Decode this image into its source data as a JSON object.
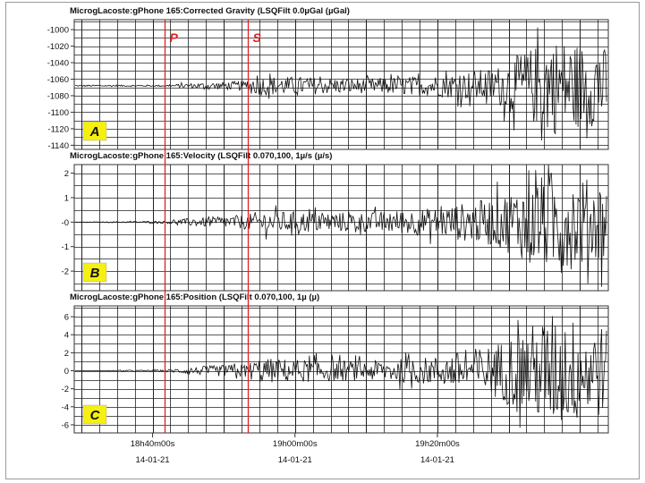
{
  "chart_data": {
    "type": "line",
    "grid": true,
    "time_axis": {
      "range": [
        "18h29m00s",
        "19h44m00s"
      ],
      "tick_labels": [
        {
          "time": "18h40m00s",
          "date": "14-01-21"
        },
        {
          "time": "19h00m00s",
          "date": "14-01-21"
        },
        {
          "time": "19h20m00s",
          "date": "14-01-21"
        }
      ]
    },
    "markers": [
      {
        "label": "P",
        "time": "18h41m45s",
        "color": "#e02020"
      },
      {
        "label": "S",
        "time": "18h53m20s",
        "color": "#e02020"
      }
    ],
    "panels": [
      {
        "letter": "A",
        "title": "MicrogLacoste:gPhone 165:Corrected Gravity (LSQFilt 0.0µGal (µGal)",
        "ylim": [
          -1145,
          -988
        ],
        "ytick_values": [
          -1000,
          -1020,
          -1040,
          -1060,
          -1080,
          -1100,
          -1120,
          -1140
        ],
        "ytick_labels": [
          "-1000",
          "-1020",
          "-1040",
          "-1060",
          "-1080",
          "-1100",
          "-1120",
          "-1140"
        ],
        "baseline": -1068,
        "envelope": [
          {
            "t": "18h29m00s",
            "amp": 1
          },
          {
            "t": "18h41m45s",
            "amp": 1
          },
          {
            "t": "18h45m00s",
            "amp": 3
          },
          {
            "t": "18h53m00s",
            "amp": 6
          },
          {
            "t": "18h55m00s",
            "amp": 12
          },
          {
            "t": "19h10m00s",
            "amp": 9
          },
          {
            "t": "19h20m00s",
            "amp": 13
          },
          {
            "t": "19h28m00s",
            "amp": 22
          },
          {
            "t": "19h34m00s",
            "amp": 50
          },
          {
            "t": "19h36m00s",
            "amp": 60
          },
          {
            "t": "19h44m00s",
            "amp": 45
          }
        ]
      },
      {
        "letter": "B",
        "title": "MicrogLacoste:gPhone 165:Velocity (LSQFilt 0.070,100, 1µ/s (µ/s)",
        "ylim": [
          -2.8,
          2.35
        ],
        "ytick_values": [
          2,
          1,
          0,
          -1,
          -2
        ],
        "ytick_labels": [
          "2",
          "1",
          "-0",
          "-1",
          "-2"
        ],
        "baseline": 0,
        "envelope": [
          {
            "t": "18h29m00s",
            "amp": 0
          },
          {
            "t": "18h41m45s",
            "amp": 0.05
          },
          {
            "t": "18h45m00s",
            "amp": 0.15
          },
          {
            "t": "18h53m00s",
            "amp": 0.3
          },
          {
            "t": "18h55m00s",
            "amp": 0.45
          },
          {
            "t": "19h10m00s",
            "amp": 0.4
          },
          {
            "t": "19h20m00s",
            "amp": 0.6
          },
          {
            "t": "19h28m00s",
            "amp": 1.0
          },
          {
            "t": "19h34m00s",
            "amp": 1.8
          },
          {
            "t": "19h36m00s",
            "amp": 2.1
          },
          {
            "t": "19h44m00s",
            "amp": 1.6
          }
        ]
      },
      {
        "letter": "C",
        "title": "MicrogLacoste:gPhone 165:Position (LSQFilt 0.070,100, 1µ (µ)",
        "ylim": [
          -6.9,
          7.2
        ],
        "ytick_values": [
          6,
          4,
          2,
          0,
          -2,
          -4,
          -6
        ],
        "ytick_labels": [
          "6",
          "4",
          "2",
          "0",
          "-2",
          "-4",
          "-6"
        ],
        "baseline": 0,
        "envelope": [
          {
            "t": "18h29m00s",
            "amp": 0
          },
          {
            "t": "18h41m45s",
            "amp": 0.1
          },
          {
            "t": "18h45m00s",
            "amp": 0.4
          },
          {
            "t": "18h53m00s",
            "amp": 0.8
          },
          {
            "t": "18h55m00s",
            "amp": 1.4
          },
          {
            "t": "19h10m00s",
            "amp": 1.1
          },
          {
            "t": "19h20m00s",
            "amp": 1.6
          },
          {
            "t": "19h28m00s",
            "amp": 3.0
          },
          {
            "t": "19h34m00s",
            "amp": 5.5
          },
          {
            "t": "19h36m00s",
            "amp": 6.5
          },
          {
            "t": "19h44m00s",
            "amp": 5.0
          }
        ]
      }
    ]
  },
  "colors": {
    "trace": "#111111",
    "grid": "#222222",
    "marker": "#e02020",
    "badge_fill": "#f5f010",
    "badge_text": "#111111",
    "frame": "#9a9a9a"
  }
}
